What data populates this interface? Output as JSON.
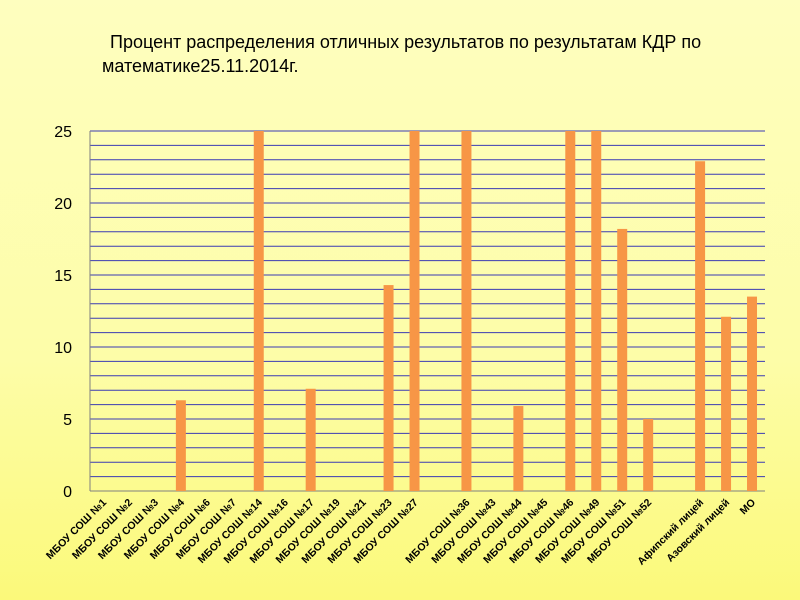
{
  "chart_data": {
    "type": "bar",
    "title": "Процент распределения отличных результатов по результатам КДР по математике25.11.2014г.",
    "categories": [
      "МБОУ СОШ №1",
      "МБОУ СОШ №2",
      "МБОУ СОШ №3",
      "МБОУ СОШ №4",
      "МБОУ СОШ №6",
      "МБОУ СОШ №7",
      "МБОУ СОШ №14",
      "МБОУ СОШ №16",
      "МБОУ СОШ №17",
      "МБОУ СОШ №19",
      "МБОУ СОШ №21",
      "МБОУ СОШ №23",
      "МБОУ СОШ №27",
      "",
      "МБОУ СОШ №36",
      "МБОУ СОШ №43",
      "МБОУ СОШ №44",
      "МБОУ СОШ №45",
      "МБОУ СОШ №46",
      "МБОУ СОШ №49",
      "МБОУ СОШ №51",
      "МБОУ СОШ №52",
      "",
      "Афипский лицей",
      "Азовский лицей",
      "МО"
    ],
    "values": [
      0,
      0,
      0,
      6.3,
      0,
      0,
      25,
      0,
      7.1,
      0,
      0,
      14.3,
      25,
      0,
      25,
      0,
      5.9,
      0,
      25,
      25,
      18.2,
      5,
      0,
      22.9,
      12.1,
      13.5
    ],
    "ylim": [
      0,
      25
    ],
    "yticks": [
      0,
      5,
      10,
      15,
      20,
      25
    ],
    "grid": true,
    "bar_color": "#f79646",
    "grid_color": "#3b3bb3"
  }
}
